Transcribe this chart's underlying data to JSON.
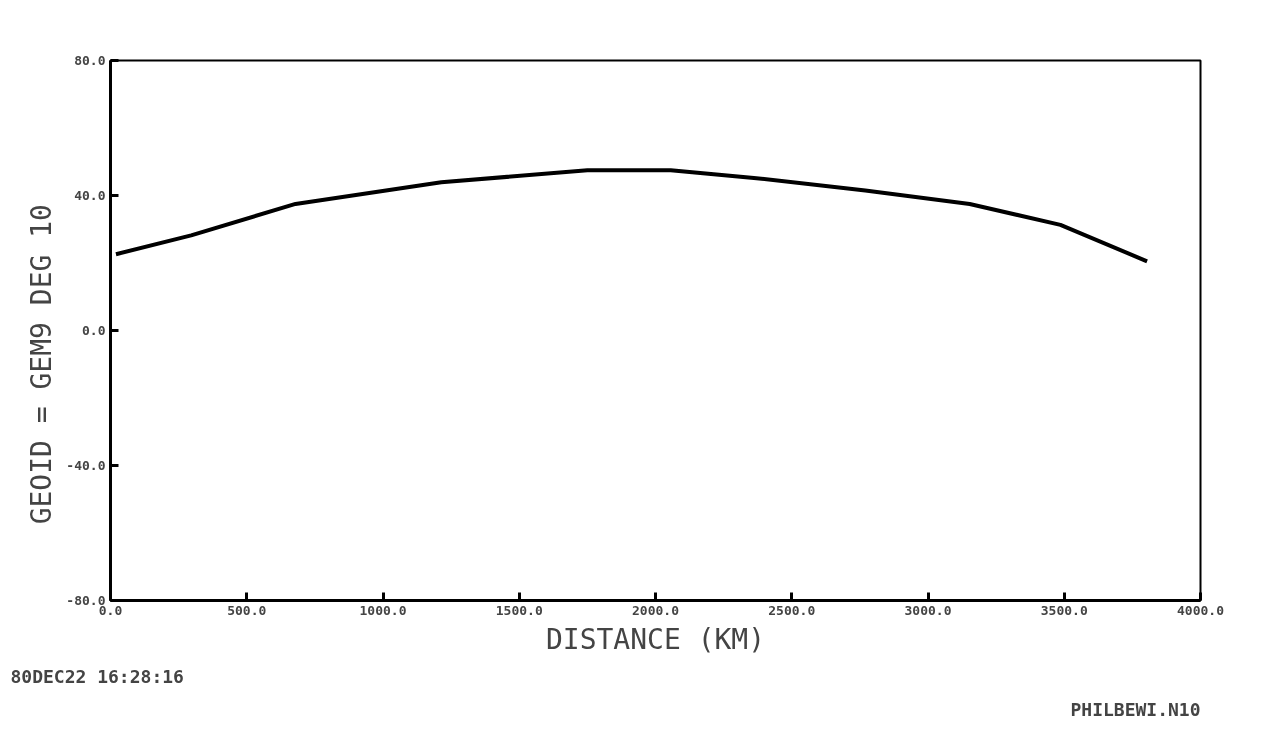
{
  "chart_data": {
    "type": "line",
    "xlabel": "DISTANCE (KM)",
    "ylabel": "GEOID    =  GEM9 DEG 10",
    "x": [
      20,
      296,
      679,
      1214,
      1750,
      2056,
      2361,
      2770,
      3153,
      3486,
      3804
    ],
    "values": [
      22.6,
      28.2,
      37.5,
      43.9,
      47.5,
      47.5,
      45.2,
      41.5,
      37.5,
      31.3,
      20.5
    ],
    "color": "#000000",
    "xlim": [
      0,
      4000
    ],
    "xticks": [
      {
        "value": 0,
        "label": "0.0"
      },
      {
        "value": 500,
        "label": "500.0"
      },
      {
        "value": 1000,
        "label": "1000.0"
      },
      {
        "value": 1500,
        "label": "1500.0"
      },
      {
        "value": 2000,
        "label": "2000.0"
      },
      {
        "value": 2500,
        "label": "2500.0"
      },
      {
        "value": 3000,
        "label": "3000.0"
      },
      {
        "value": 3500,
        "label": "3500.0"
      },
      {
        "value": 4000,
        "label": "4000.0"
      }
    ],
    "ylim": [
      -80,
      80
    ],
    "yticks": [
      {
        "value": -80,
        "label": "-80.0"
      },
      {
        "value": -40,
        "label": "-40.0"
      },
      {
        "value": 0,
        "label": "0.0"
      },
      {
        "value": 40,
        "label": "40.0"
      },
      {
        "value": 80,
        "label": "80.0"
      }
    ],
    "grid": false,
    "annotations": [
      "80DEC22 16:28:16",
      "PHILBEWI.N10"
    ]
  }
}
